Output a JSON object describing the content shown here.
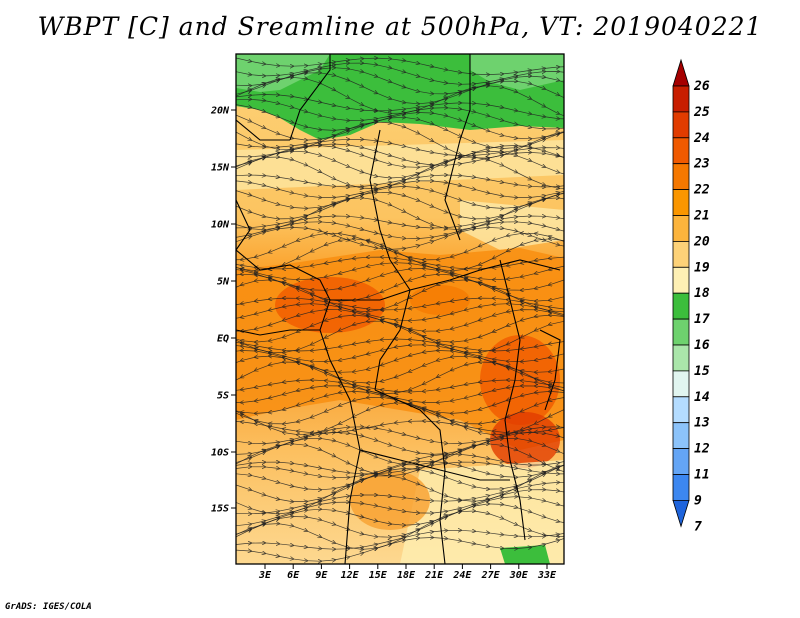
{
  "title": "WBPT [C] and Sreamline at 500hPa, VT: 2019040221",
  "credit": "GrADS: IGES/COLA",
  "map": {
    "lat_labels": [
      "20N",
      "15N",
      "10N",
      "5N",
      "EQ",
      "5S",
      "10S",
      "15S"
    ],
    "lon_labels": [
      "3E",
      "6E",
      "9E",
      "12E",
      "15E",
      "18E",
      "21E",
      "24E",
      "27E",
      "30E",
      "33E"
    ]
  },
  "colorbar": {
    "levels": [
      "26",
      "25",
      "24",
      "23",
      "22",
      "21",
      "20",
      "19",
      "18",
      "17",
      "16",
      "15",
      "14",
      "13",
      "12",
      "11",
      "9",
      "7"
    ],
    "colors": [
      "#a50000",
      "#c81e00",
      "#e13c00",
      "#f05a00",
      "#f57800",
      "#fa9600",
      "#fcb43c",
      "#fdd278",
      "#fef0b4",
      "#3cbe3c",
      "#6ed26e",
      "#aae6aa",
      "#e1f5f0",
      "#b4dcff",
      "#8cc3fa",
      "#64a5f5",
      "#3c87f0",
      "#1e64dc"
    ]
  },
  "colors": {
    "streamline": "#222222",
    "border": "#000000"
  }
}
